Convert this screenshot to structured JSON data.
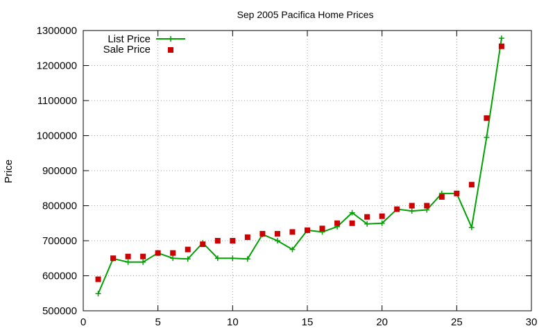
{
  "chart_data": {
    "type": "line",
    "title": "Sep 2005 Pacifica Home Prices",
    "xlabel": "",
    "ylabel": "Price",
    "xlim": [
      0,
      30
    ],
    "ylim": [
      500000,
      1300000
    ],
    "x_ticks": [
      0,
      5,
      10,
      15,
      20,
      25,
      30
    ],
    "y_ticks": [
      500000,
      600000,
      700000,
      800000,
      900000,
      1000000,
      1100000,
      1200000,
      1300000
    ],
    "grid": true,
    "legend_position": "top-left",
    "x": [
      1,
      2,
      3,
      4,
      5,
      6,
      7,
      8,
      9,
      10,
      11,
      12,
      13,
      14,
      15,
      16,
      17,
      18,
      19,
      20,
      21,
      22,
      23,
      24,
      25,
      26,
      27,
      28
    ],
    "series": [
      {
        "name": "List Price",
        "style": "line-with-plus-markers",
        "color": "#00a000",
        "values": [
          549000,
          649000,
          639000,
          639000,
          665000,
          650000,
          648000,
          694000,
          650000,
          650000,
          648000,
          718000,
          700000,
          675000,
          730000,
          725000,
          740000,
          780000,
          748000,
          750000,
          790000,
          785000,
          788000,
          835000,
          835000,
          738000,
          995000,
          1278000
        ]
      },
      {
        "name": "Sale Price",
        "style": "square-points",
        "color": "#cc0000",
        "values": [
          590000,
          650000,
          655000,
          655000,
          665000,
          665000,
          675000,
          690000,
          700000,
          700000,
          710000,
          720000,
          720000,
          725000,
          730000,
          735000,
          750000,
          750000,
          768000,
          770000,
          790000,
          800000,
          800000,
          825000,
          835000,
          860000,
          1050000,
          1255000
        ]
      }
    ]
  }
}
